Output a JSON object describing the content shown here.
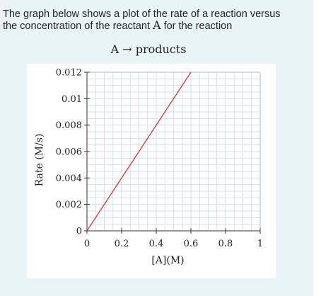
{
  "question": {
    "line1": "The graph below shows a plot of the rate of a reaction versus",
    "line2_pre": "the concentration of the reactant ",
    "line2_reactant": "A",
    "line2_post": " for the reaction"
  },
  "equation": {
    "text": "A → products"
  },
  "chart_data": {
    "type": "line",
    "xlabel": "[A](M)",
    "ylabel": "Rate (M/s)",
    "xlim": [
      0,
      1
    ],
    "ylim": [
      0,
      0.012
    ],
    "x_ticks": [
      "0",
      "0.2",
      "0.4",
      "0.6",
      "0.8",
      "1"
    ],
    "y_ticks": [
      "0",
      "0.002",
      "0.004",
      "0.006",
      "0.008",
      "0.01",
      "0.012"
    ],
    "grid": true,
    "series": [
      {
        "color": "#d9342b",
        "x": [
          0,
          0.6
        ],
        "y": [
          0,
          0.012
        ]
      }
    ]
  }
}
